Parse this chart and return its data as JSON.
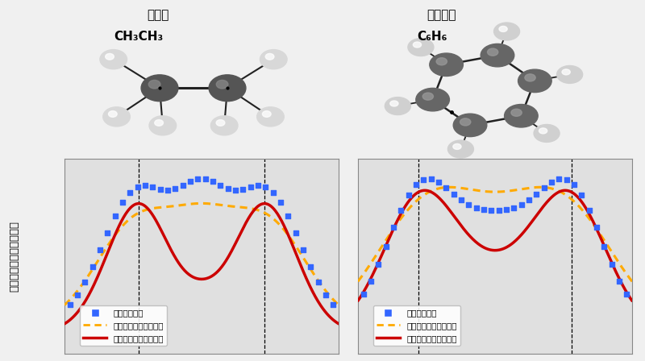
{
  "title_left": "エタン",
  "formula_left": "CH₃CH₃",
  "title_right": "ベンゼン",
  "formula_right": "C₆H₆",
  "ylabel": "ポテンシャル・電子密度",
  "legend_entries": [
    "ポテンシャル",
    "電子密度（理論計算）",
    "電子密度（機械学習）"
  ],
  "blue_color": "#3366ff",
  "orange_color": "#ffaa00",
  "red_color": "#cc0000",
  "plot_bg": "#e0e0e0",
  "grid_color": "#ffffff"
}
